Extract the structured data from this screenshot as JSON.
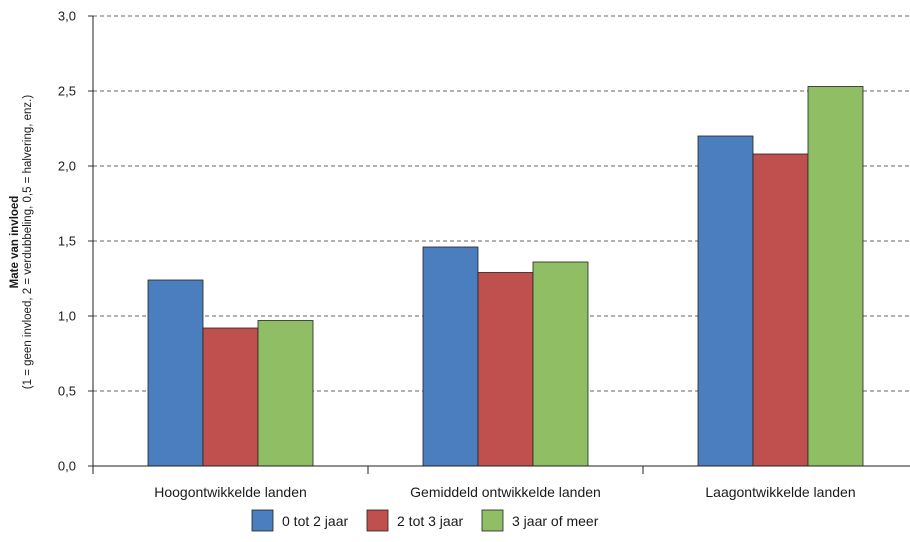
{
  "chart_data": {
    "type": "bar",
    "categories": [
      "Hoogontwikkelde landen",
      "Gemiddeld ontwikkelde landen",
      "Laagontwikkelde landen"
    ],
    "series": [
      {
        "name": "0 tot 2 jaar",
        "color": "#4a7ebf",
        "values": [
          1.24,
          1.46,
          2.2
        ]
      },
      {
        "name": "2 tot 3 jaar",
        "color": "#c0504d",
        "values": [
          0.92,
          1.29,
          2.08
        ]
      },
      {
        "name": "3 jaar of meer",
        "color": "#8fbe65",
        "values": [
          0.97,
          1.36,
          2.53
        ]
      }
    ],
    "ylabel": "Mate van invloed",
    "ylabel_sub": "(1 = geen invloed, 2 = verdubbeling, 0,5 = halvering, enz.)",
    "ylim": [
      0,
      3.0
    ],
    "yticks": [
      "0,0",
      "0,5",
      "1,0",
      "1,5",
      "2,0",
      "2,5",
      "3,0"
    ],
    "grid": "dashed horizontal",
    "legend": "bottom"
  }
}
